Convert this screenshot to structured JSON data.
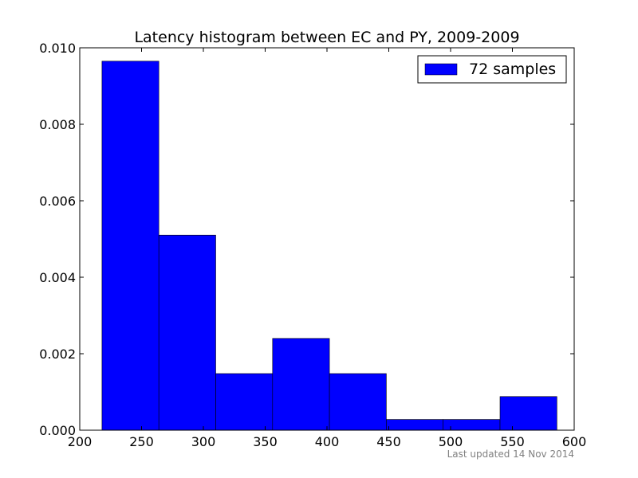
{
  "chart_data": {
    "type": "bar",
    "title": "Latency histogram between EC and PY, 2009-2009",
    "xlabel": "",
    "ylabel": "",
    "xlim": [
      200,
      600
    ],
    "ylim": [
      0,
      0.01
    ],
    "x_ticks": [
      200,
      250,
      300,
      350,
      400,
      450,
      500,
      550,
      600
    ],
    "x_tick_labels": [
      "200",
      "250",
      "300",
      "350",
      "400",
      "450",
      "500",
      "550",
      "600"
    ],
    "y_ticks": [
      0.0,
      0.002,
      0.004,
      0.006,
      0.008,
      0.01
    ],
    "y_tick_labels": [
      "0.000",
      "0.002",
      "0.004",
      "0.006",
      "0.008",
      "0.010"
    ],
    "bins": [
      {
        "start": 218,
        "end": 264,
        "value": 0.00965
      },
      {
        "start": 264,
        "end": 310,
        "value": 0.0051
      },
      {
        "start": 310,
        "end": 356,
        "value": 0.00148
      },
      {
        "start": 356,
        "end": 402,
        "value": 0.0024
      },
      {
        "start": 402,
        "end": 448,
        "value": 0.00148
      },
      {
        "start": 448,
        "end": 494,
        "value": 0.00028
      },
      {
        "start": 494,
        "end": 540,
        "value": 0.00028
      },
      {
        "start": 540,
        "end": 586,
        "value": 0.00088
      }
    ],
    "series": [
      {
        "name": "72 samples",
        "color": "#0000ff"
      }
    ],
    "legend_position": "top-right",
    "grid": false
  },
  "footer": {
    "text": "Last updated 14 Nov 2014"
  }
}
